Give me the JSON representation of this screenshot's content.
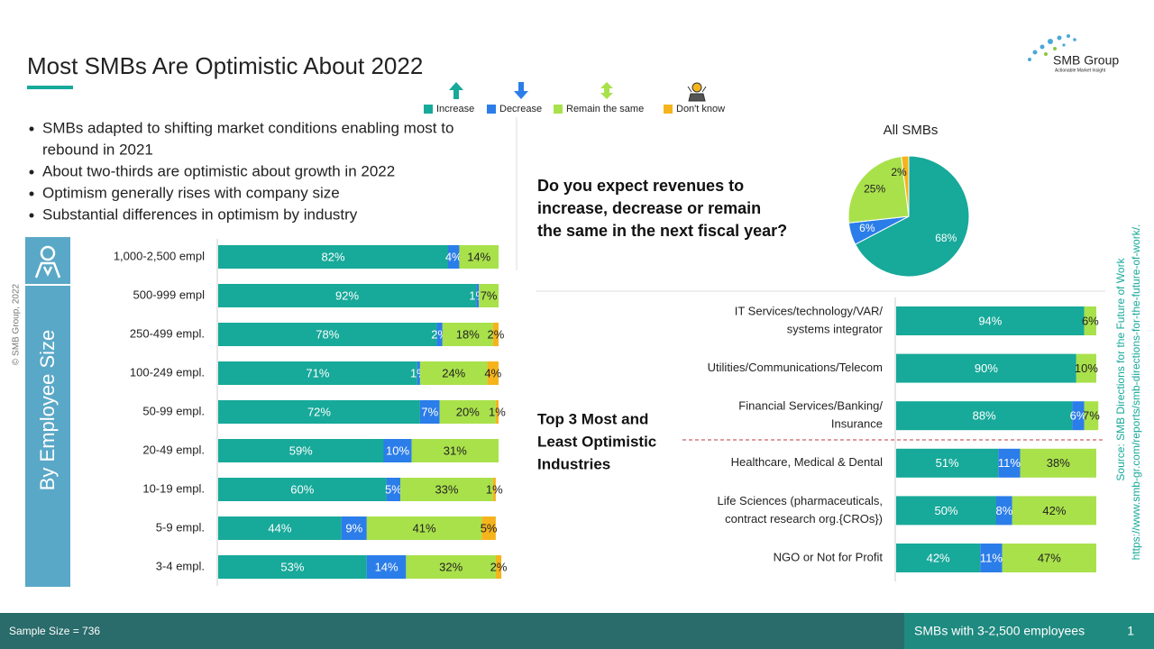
{
  "header": {
    "title": "Most SMBs Are Optimistic About 2022"
  },
  "logo": {
    "name": "SMB Group",
    "tagline": "Actionable Market Insight"
  },
  "bullets": [
    [
      "SMBs adapted to shifting market conditions enabling most to",
      "rebound in 2021"
    ],
    [
      "About two-thirds are optimistic about growth in 2022"
    ],
    [
      "Optimism generally rises with company size"
    ],
    [
      "Substantial differences in optimism by industry"
    ]
  ],
  "panel_label": "By Employee Size",
  "question": [
    "Do you expect revenues to",
    "increase, decrease or remain",
    "the same in the next fiscal year?"
  ],
  "industries_label": [
    "Top 3 Most and",
    "Least Optimistic",
    "Industries"
  ],
  "chart_data": [
    {
      "type": "bar",
      "orientation": "horizontal",
      "stacked": true,
      "xlim": [
        0,
        100
      ],
      "categories": [
        "1,000-2,500 empl",
        "500-999 empl",
        "250-499 empl.",
        "100-249 empl.",
        "50-99 empl.",
        "20-49 empl.",
        "10-19 empl.",
        "5-9 empl.",
        "3-4 empl."
      ],
      "series": [
        {
          "name": "Increase",
          "color": "#17a99a",
          "values": [
            82,
            92,
            78,
            71,
            72,
            59,
            60,
            44,
            53
          ],
          "value_labels": [
            "82%",
            "92%",
            "78%",
            "71%",
            "72%",
            "59%",
            "60%",
            "44%",
            "53%"
          ]
        },
        {
          "name": "Decrease",
          "color": "#2b7de9",
          "values": [
            4,
            1,
            2,
            1,
            7,
            10,
            5,
            9,
            14
          ],
          "value_labels": [
            "4%",
            "1%",
            "2%",
            "1%",
            "7%",
            "10%",
            "5%",
            "9%",
            "14%"
          ]
        },
        {
          "name": "Remain the same",
          "color": "#a9e14b",
          "values": [
            14,
            7,
            18,
            24,
            20,
            31,
            33,
            41,
            32
          ],
          "value_labels": [
            "14%",
            "7%",
            "18%",
            "24%",
            "20%",
            "31%",
            "33%",
            "41%",
            "32%"
          ]
        },
        {
          "name": "Don't know",
          "color": "#f5b41c",
          "values": [
            null,
            null,
            2,
            4,
            1,
            null,
            1,
            5,
            2
          ],
          "value_labels": [
            null,
            null,
            "2%",
            "4%",
            "1%",
            null,
            "1%",
            "5%",
            "2%"
          ]
        }
      ]
    },
    {
      "type": "pie",
      "title": "All SMBs",
      "values": [
        68,
        6,
        25,
        2
      ],
      "value_labels": [
        "68%",
        "6%",
        "25%",
        "2%"
      ],
      "colors": [
        "#17a99a",
        "#2b7de9",
        "#a9e14b",
        "#f5b41c"
      ]
    },
    {
      "type": "bar",
      "orientation": "horizontal",
      "stacked": true,
      "xlim": [
        0,
        100
      ],
      "categories": [
        [
          "IT Services/technology/VAR/",
          "systems integrator"
        ],
        [
          "Utilities/Communications/Telecom"
        ],
        [
          "Financial Services/Banking/",
          "Insurance"
        ],
        [
          "Healthcare, Medical & Dental"
        ],
        [
          "Life Sciences (pharmaceuticals,",
          "contract research org.{CROs})"
        ],
        [
          "NGO or Not for Profit"
        ]
      ],
      "series": [
        {
          "name": "Increase",
          "color": "#17a99a",
          "values": [
            94,
            90,
            88,
            51,
            50,
            42
          ],
          "value_labels": [
            "94%",
            "90%",
            "88%",
            "51%",
            "50%",
            "42%"
          ]
        },
        {
          "name": "Decrease",
          "color": "#2b7de9",
          "values": [
            null,
            null,
            6,
            11,
            8,
            11
          ],
          "value_labels": [
            null,
            null,
            "6%",
            "11%",
            "8%",
            "11%"
          ]
        },
        {
          "name": "Remain the same",
          "color": "#a9e14b",
          "values": [
            6,
            10,
            7,
            38,
            42,
            47
          ],
          "value_labels": [
            "6%",
            "10%",
            "7%",
            "38%",
            "42%",
            "47%"
          ]
        }
      ]
    }
  ],
  "footer": {
    "sample": "Sample Size = 736",
    "scope": "SMBs with 3-2,500 employees",
    "page": "1"
  },
  "copyright": "© SMB Group, 2022",
  "source": [
    "Source: SMB Directions for the Future of Work",
    "https://www.smb-gr.com/reports/smb-directions-for-the-future-of-work/."
  ]
}
